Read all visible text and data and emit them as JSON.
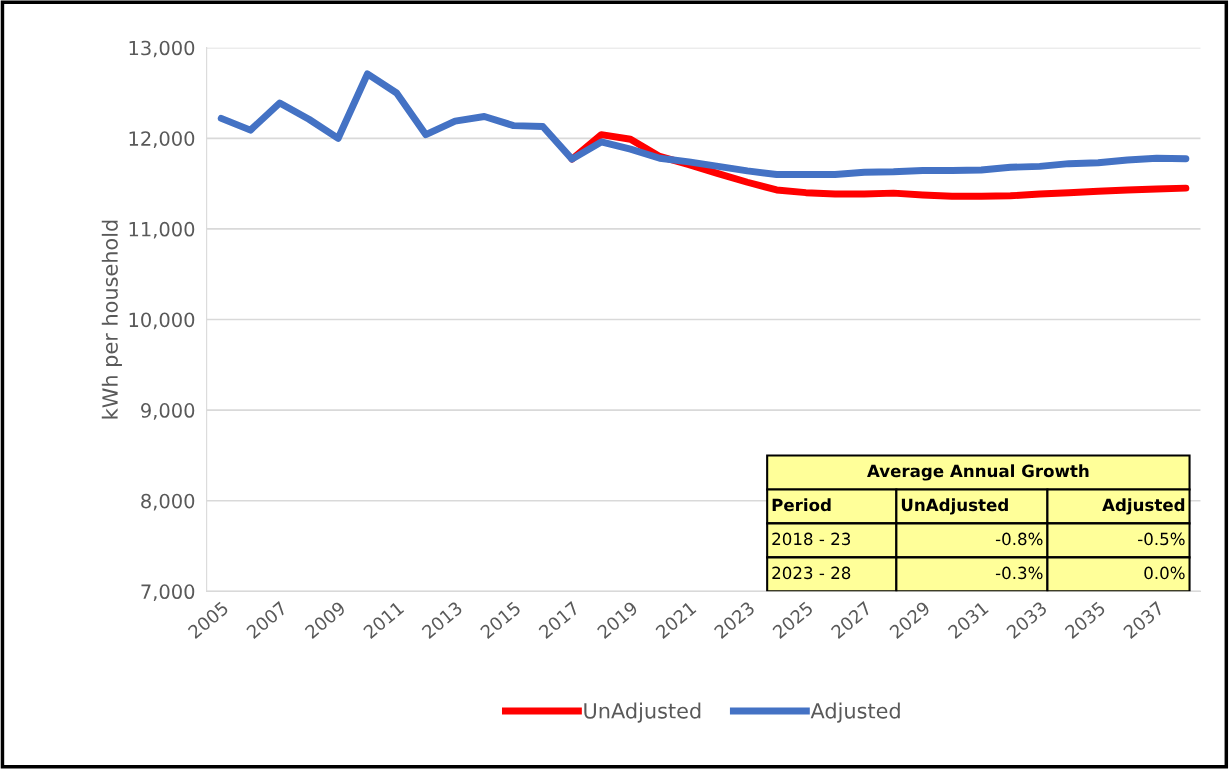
{
  "chart_data": {
    "type": "line",
    "ylabel": "kWh per household",
    "categories": [
      "2005",
      null,
      "2007",
      null,
      "2009",
      null,
      "2011",
      null,
      "2013",
      null,
      "2015",
      null,
      "2017",
      null,
      "2019",
      null,
      "2021",
      null,
      "2023",
      null,
      "2025",
      null,
      "2027",
      null,
      "2029",
      null,
      "2031",
      null,
      "2033",
      null,
      "2035",
      null,
      "2037",
      null
    ],
    "series": [
      {
        "name": "UnAdjusted",
        "color": "#ff0000",
        "values": [
          null,
          null,
          null,
          null,
          null,
          null,
          null,
          null,
          null,
          null,
          null,
          null,
          11770,
          12040,
          11990,
          11800,
          11710,
          11610,
          11515,
          11430,
          11400,
          11385,
          11385,
          11395,
          11375,
          11360,
          11360,
          11365,
          11385,
          11400,
          11415,
          11430,
          11440,
          11450
        ]
      },
      {
        "name": "Adjusted",
        "color": "#4472c4",
        "values": [
          12220,
          12090,
          12390,
          12210,
          12000,
          12710,
          12500,
          12040,
          12190,
          12240,
          12140,
          12130,
          11770,
          11960,
          11880,
          11780,
          11740,
          11690,
          11640,
          11600,
          11600,
          11600,
          11625,
          11630,
          11645,
          11645,
          11650,
          11680,
          11690,
          11720,
          11730,
          11760,
          11780,
          11775
        ]
      }
    ],
    "ylim": [
      7000,
      13000
    ],
    "yticks": [
      {
        "value": 7000,
        "label": "7,000"
      },
      {
        "value": 8000,
        "label": "8,000"
      },
      {
        "value": 9000,
        "label": "9,000"
      },
      {
        "value": 10000,
        "label": "10,000"
      },
      {
        "value": 11000,
        "label": "11,000"
      },
      {
        "value": 12000,
        "label": "12,000"
      },
      {
        "value": 13000,
        "label": "13,000"
      }
    ],
    "grid": "y",
    "legend": "bottom",
    "marker": "none",
    "line_style": "solid",
    "annotations": [
      "Average Annual Growth",
      "Period",
      "UnAdjusted",
      "Adjusted",
      "2018 - 23",
      "-0.8%",
      "-0.5%",
      "2023 - 28",
      "-0.3%",
      "0.0%"
    ]
  }
}
